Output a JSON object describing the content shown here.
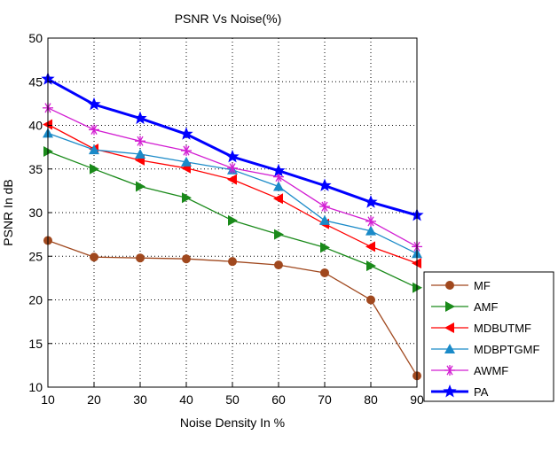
{
  "chart_data": {
    "type": "line",
    "title": "PSNR Vs Noise(%)",
    "xlabel": "Noise Density In %",
    "ylabel": "PSNR In dB",
    "x": [
      10,
      20,
      30,
      40,
      50,
      60,
      70,
      80,
      90
    ],
    "xlim": [
      10,
      90
    ],
    "ylim": [
      10,
      50
    ],
    "xticks": [
      10,
      20,
      30,
      40,
      50,
      60,
      70,
      80,
      90
    ],
    "yticks": [
      10,
      15,
      20,
      25,
      30,
      35,
      40,
      45,
      50
    ],
    "grid": true,
    "legend_position": "bottom-right",
    "series": [
      {
        "name": "MF",
        "color": "#a0481e",
        "marker": "circle",
        "values": [
          26.8,
          24.9,
          24.8,
          24.7,
          24.4,
          24.0,
          23.1,
          20.0,
          11.3
        ]
      },
      {
        "name": "AMF",
        "color": "#1a8a1a",
        "marker": "triangle-right",
        "values": [
          37.0,
          35.0,
          33.0,
          31.7,
          29.1,
          27.5,
          26.0,
          23.9,
          21.4
        ]
      },
      {
        "name": "MDBUTMF",
        "color": "#ff0000",
        "marker": "triangle-left",
        "values": [
          40.1,
          37.3,
          36.0,
          35.1,
          33.8,
          31.6,
          28.7,
          26.1,
          24.2
        ]
      },
      {
        "name": "MDBPTGMF",
        "color": "#1a8ac8",
        "marker": "triangle-up",
        "values": [
          39.1,
          37.2,
          36.7,
          35.8,
          34.9,
          33.0,
          29.1,
          27.9,
          25.3
        ]
      },
      {
        "name": "AWMF",
        "color": "#d21ed2",
        "marker": "star6",
        "values": [
          42.0,
          39.5,
          38.2,
          37.1,
          35.1,
          34.1,
          30.7,
          29.0,
          26.1
        ]
      },
      {
        "name": "PA",
        "color": "#0000ff",
        "marker": "star5",
        "values": [
          45.3,
          42.4,
          40.8,
          39.0,
          36.4,
          34.8,
          33.1,
          31.2,
          29.7
        ]
      }
    ]
  }
}
